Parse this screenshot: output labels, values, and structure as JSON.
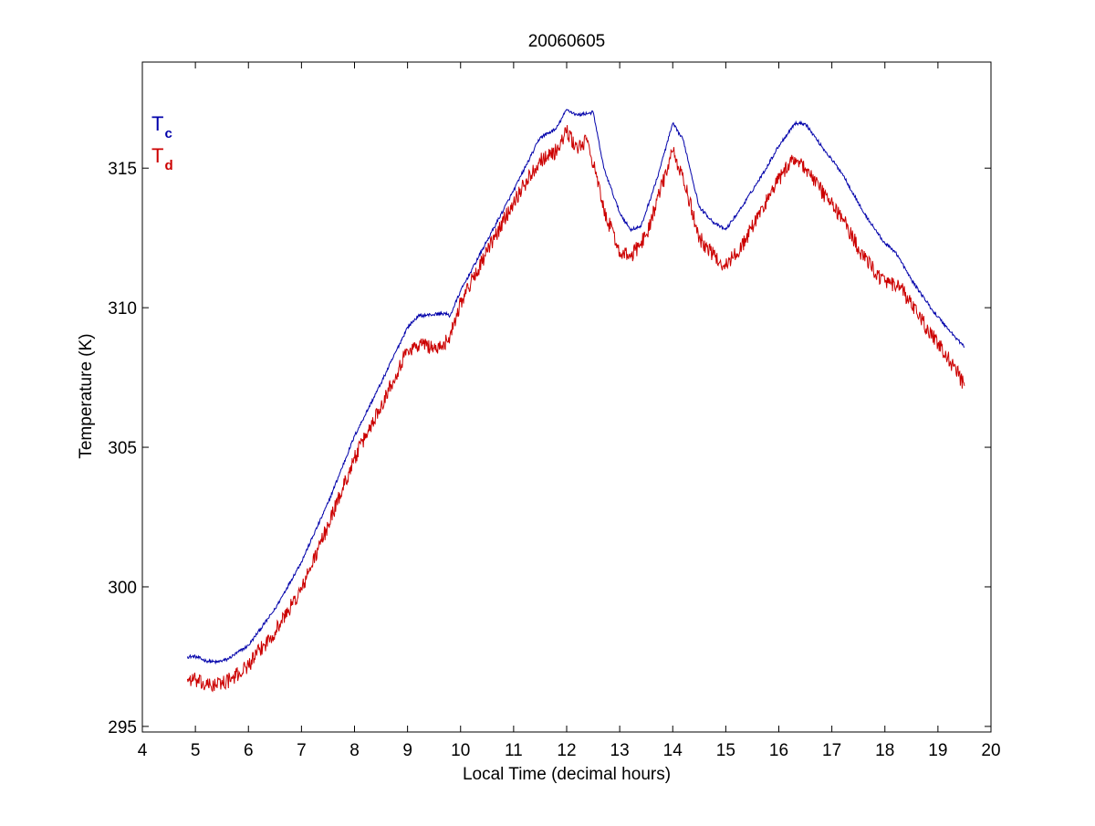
{
  "chart_data": {
    "type": "line",
    "title": "20060605",
    "xlabel": "Local Time (decimal hours)",
    "ylabel": "Temperature (K)",
    "xlim": [
      4,
      20
    ],
    "ylim": [
      294.8,
      318.8
    ],
    "xticks": [
      4,
      5,
      6,
      7,
      8,
      9,
      10,
      11,
      12,
      13,
      14,
      15,
      16,
      17,
      18,
      19,
      20
    ],
    "yticks": [
      295,
      300,
      305,
      310,
      315
    ],
    "grid": false,
    "legend_position": "top-left",
    "legend": [
      {
        "main": "T",
        "sub": "c",
        "color": "#0000aa"
      },
      {
        "main": "T",
        "sub": "d",
        "color": "#cc0000"
      }
    ],
    "series": [
      {
        "color": "#0000aa",
        "noise": 0.06,
        "points": [
          [
            4.85,
            297.5
          ],
          [
            5.0,
            297.5
          ],
          [
            5.2,
            297.35
          ],
          [
            5.4,
            297.3
          ],
          [
            5.6,
            297.4
          ],
          [
            6.0,
            297.9
          ],
          [
            6.5,
            299.2
          ],
          [
            7.0,
            300.9
          ],
          [
            7.5,
            303.0
          ],
          [
            8.0,
            305.4
          ],
          [
            8.5,
            307.3
          ],
          [
            9.0,
            309.3
          ],
          [
            9.2,
            309.7
          ],
          [
            9.7,
            309.8
          ],
          [
            9.8,
            309.7
          ],
          [
            10.0,
            310.6
          ],
          [
            10.5,
            312.4
          ],
          [
            11.0,
            314.2
          ],
          [
            11.5,
            316.1
          ],
          [
            11.8,
            316.4
          ],
          [
            12.0,
            317.1
          ],
          [
            12.2,
            316.9
          ],
          [
            12.5,
            317.0
          ],
          [
            12.7,
            315.0
          ],
          [
            13.0,
            313.4
          ],
          [
            13.2,
            312.8
          ],
          [
            13.4,
            312.9
          ],
          [
            13.7,
            314.6
          ],
          [
            14.0,
            316.6
          ],
          [
            14.2,
            316.0
          ],
          [
            14.5,
            313.6
          ],
          [
            14.8,
            313.0
          ],
          [
            15.0,
            312.8
          ],
          [
            15.3,
            313.6
          ],
          [
            15.7,
            314.8
          ],
          [
            16.0,
            315.8
          ],
          [
            16.3,
            316.6
          ],
          [
            16.5,
            316.6
          ],
          [
            16.8,
            315.8
          ],
          [
            17.2,
            314.8
          ],
          [
            17.6,
            313.4
          ],
          [
            18.0,
            312.3
          ],
          [
            18.2,
            312.0
          ],
          [
            18.5,
            311.0
          ],
          [
            18.9,
            309.9
          ],
          [
            19.3,
            309.0
          ],
          [
            19.5,
            308.6
          ]
        ]
      },
      {
        "color": "#cc0000",
        "noise": 0.28,
        "points": [
          [
            4.85,
            296.7
          ],
          [
            5.0,
            296.65
          ],
          [
            5.2,
            296.45
          ],
          [
            5.4,
            296.5
          ],
          [
            5.7,
            296.7
          ],
          [
            6.0,
            297.2
          ],
          [
            6.5,
            298.4
          ],
          [
            7.0,
            299.9
          ],
          [
            7.5,
            302.2
          ],
          [
            8.0,
            304.6
          ],
          [
            8.5,
            306.5
          ],
          [
            9.0,
            308.5
          ],
          [
            9.3,
            308.7
          ],
          [
            9.6,
            308.5
          ],
          [
            9.8,
            309.0
          ],
          [
            10.0,
            310.2
          ],
          [
            10.5,
            312.0
          ],
          [
            11.0,
            313.8
          ],
          [
            11.5,
            315.3
          ],
          [
            11.8,
            315.6
          ],
          [
            12.0,
            316.3
          ],
          [
            12.2,
            315.7
          ],
          [
            12.4,
            316.0
          ],
          [
            12.7,
            313.5
          ],
          [
            13.0,
            312.0
          ],
          [
            13.2,
            311.8
          ],
          [
            13.5,
            312.6
          ],
          [
            14.0,
            315.6
          ],
          [
            14.2,
            314.6
          ],
          [
            14.5,
            312.5
          ],
          [
            14.8,
            311.8
          ],
          [
            15.0,
            311.5
          ],
          [
            15.3,
            312.2
          ],
          [
            15.7,
            313.6
          ],
          [
            16.0,
            314.6
          ],
          [
            16.3,
            315.4
          ],
          [
            16.5,
            315.0
          ],
          [
            16.8,
            314.2
          ],
          [
            17.2,
            313.2
          ],
          [
            17.6,
            311.8
          ],
          [
            18.0,
            310.9
          ],
          [
            18.3,
            310.7
          ],
          [
            18.6,
            309.8
          ],
          [
            19.0,
            308.7
          ],
          [
            19.3,
            307.9
          ],
          [
            19.5,
            307.2
          ]
        ]
      }
    ]
  }
}
